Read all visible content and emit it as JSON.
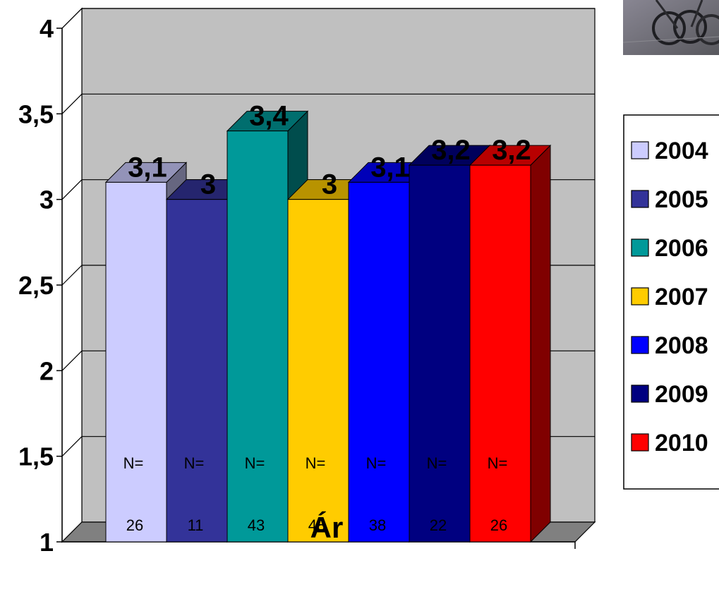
{
  "chart_data": {
    "type": "bar",
    "categories": [
      "Ár"
    ],
    "xlabel": "Ár",
    "ylabel": "",
    "ylim": [
      1,
      4
    ],
    "yticks": [
      "1",
      "1,5",
      "2",
      "2,5",
      "3",
      "3,5",
      "4"
    ],
    "ytick_values": [
      1,
      1.5,
      2,
      2.5,
      3,
      3.5,
      4
    ],
    "grid": true,
    "legend_position": "right",
    "series": [
      {
        "name": "2004",
        "value": 3.1,
        "value_label": "3,1",
        "n_prefix": "N=",
        "n": "26",
        "color": "#CCCCFF"
      },
      {
        "name": "2005",
        "value": 3.0,
        "value_label": "3",
        "n_prefix": "N=",
        "n": "11",
        "color": "#333399"
      },
      {
        "name": "2006",
        "value": 3.4,
        "value_label": "3,4",
        "n_prefix": "N=",
        "n": "43",
        "color": "#009999"
      },
      {
        "name": "2007",
        "value": 3.0,
        "value_label": "3",
        "n_prefix": "N=",
        "n": "48",
        "color": "#FFCC00"
      },
      {
        "name": "2008",
        "value": 3.1,
        "value_label": "3,1",
        "n_prefix": "N=",
        "n": "38",
        "color": "#0000FF"
      },
      {
        "name": "2009",
        "value": 3.2,
        "value_label": "3,2",
        "n_prefix": "N=",
        "n": "22",
        "color": "#000080"
      },
      {
        "name": "2010",
        "value": 3.2,
        "value_label": "3,2",
        "n_prefix": "N=",
        "n": "26",
        "color": "#FF0000"
      }
    ],
    "colors": {
      "wall": "#C0C0C0",
      "floor": "#808080",
      "gridline": "#000000"
    }
  },
  "photo": {
    "icon": "bicycle-photo"
  }
}
